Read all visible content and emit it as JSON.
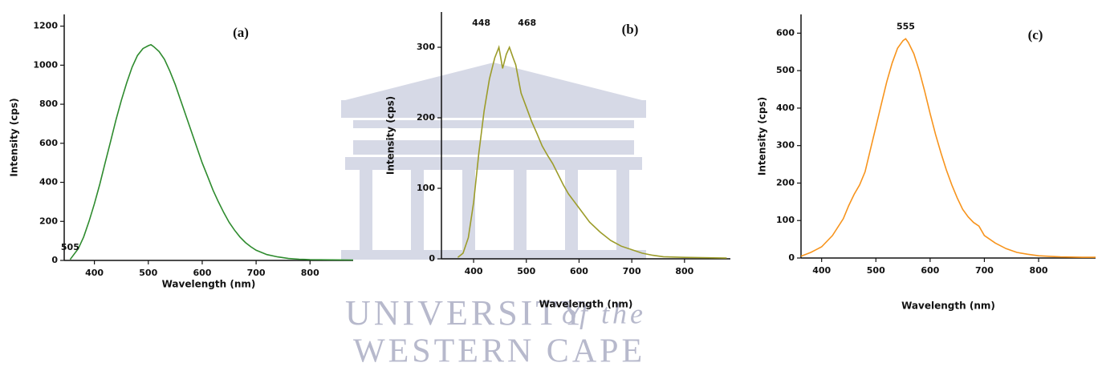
{
  "watermark": {
    "line1": "UNIVERSITY",
    "line2": "of the",
    "line3": "WESTERN CAPE"
  },
  "chart_data": [
    {
      "type": "line",
      "panel_label": "(a)",
      "annotations": [
        "505"
      ],
      "xlabel": "Wavelength (nm)",
      "ylabel": "Intensity (cps)",
      "color": "#2e8b2e",
      "x": [
        355,
        370,
        380,
        390,
        400,
        410,
        420,
        430,
        440,
        450,
        460,
        470,
        480,
        490,
        500,
        505,
        510,
        520,
        530,
        540,
        550,
        560,
        570,
        580,
        590,
        600,
        610,
        620,
        630,
        640,
        650,
        660,
        670,
        680,
        690,
        700,
        720,
        740,
        760,
        780,
        800,
        840,
        880
      ],
      "values": [
        5,
        60,
        120,
        200,
        290,
        390,
        500,
        610,
        720,
        820,
        910,
        990,
        1050,
        1085,
        1100,
        1105,
        1095,
        1070,
        1030,
        970,
        900,
        820,
        740,
        660,
        580,
        500,
        430,
        360,
        300,
        245,
        195,
        155,
        120,
        92,
        70,
        52,
        30,
        18,
        10,
        6,
        4,
        3,
        2
      ],
      "xlim": [
        344,
        880
      ],
      "ylim": [
        0,
        1260
      ],
      "xticks": [
        400,
        500,
        600,
        700,
        800
      ],
      "yticks": [
        0,
        200,
        400,
        600,
        800,
        1000,
        1200
      ]
    },
    {
      "type": "line",
      "panel_label": "(b)",
      "annotations": [
        "448",
        "468"
      ],
      "xlabel": "Wavelength (nm)",
      "ylabel": "Intensity (cps)",
      "color": "#9c9c2a",
      "x": [
        370,
        380,
        390,
        400,
        410,
        420,
        430,
        440,
        448,
        455,
        462,
        468,
        475,
        480,
        490,
        500,
        510,
        520,
        530,
        540,
        550,
        560,
        570,
        580,
        590,
        600,
        620,
        640,
        660,
        680,
        700,
        720,
        740,
        760,
        800,
        880
      ],
      "values": [
        2,
        8,
        30,
        80,
        150,
        210,
        255,
        285,
        300,
        270,
        290,
        300,
        285,
        275,
        235,
        215,
        195,
        178,
        160,
        147,
        135,
        120,
        105,
        92,
        82,
        72,
        52,
        38,
        26,
        18,
        13,
        8,
        5,
        3,
        2,
        1
      ],
      "xlim": [
        339,
        887
      ],
      "ylim": [
        0,
        350
      ],
      "xticks": [
        400,
        500,
        600,
        700,
        800
      ],
      "yticks": [
        0,
        100,
        200,
        300
      ]
    },
    {
      "type": "line",
      "panel_label": "(c)",
      "annotations": [
        "555"
      ],
      "xlabel": "Wavelength (nm)",
      "ylabel": "Intensity (cps)",
      "color": "#f7941d",
      "x": [
        362,
        380,
        400,
        420,
        440,
        450,
        460,
        470,
        480,
        490,
        500,
        510,
        520,
        530,
        540,
        550,
        555,
        560,
        570,
        580,
        590,
        600,
        610,
        620,
        630,
        640,
        650,
        660,
        670,
        680,
        690,
        700,
        720,
        740,
        760,
        780,
        800,
        840,
        880,
        905
      ],
      "values": [
        5,
        15,
        30,
        60,
        105,
        140,
        170,
        195,
        230,
        290,
        350,
        410,
        470,
        520,
        560,
        580,
        585,
        575,
        545,
        500,
        445,
        385,
        330,
        280,
        235,
        195,
        160,
        130,
        110,
        95,
        85,
        60,
        40,
        25,
        15,
        10,
        6,
        3,
        2,
        2
      ],
      "xlim": [
        362,
        905
      ],
      "ylim": [
        0,
        650
      ],
      "xticks": [
        400,
        500,
        600,
        700,
        800
      ],
      "yticks": [
        0,
        100,
        200,
        300,
        400,
        500,
        600
      ]
    }
  ]
}
